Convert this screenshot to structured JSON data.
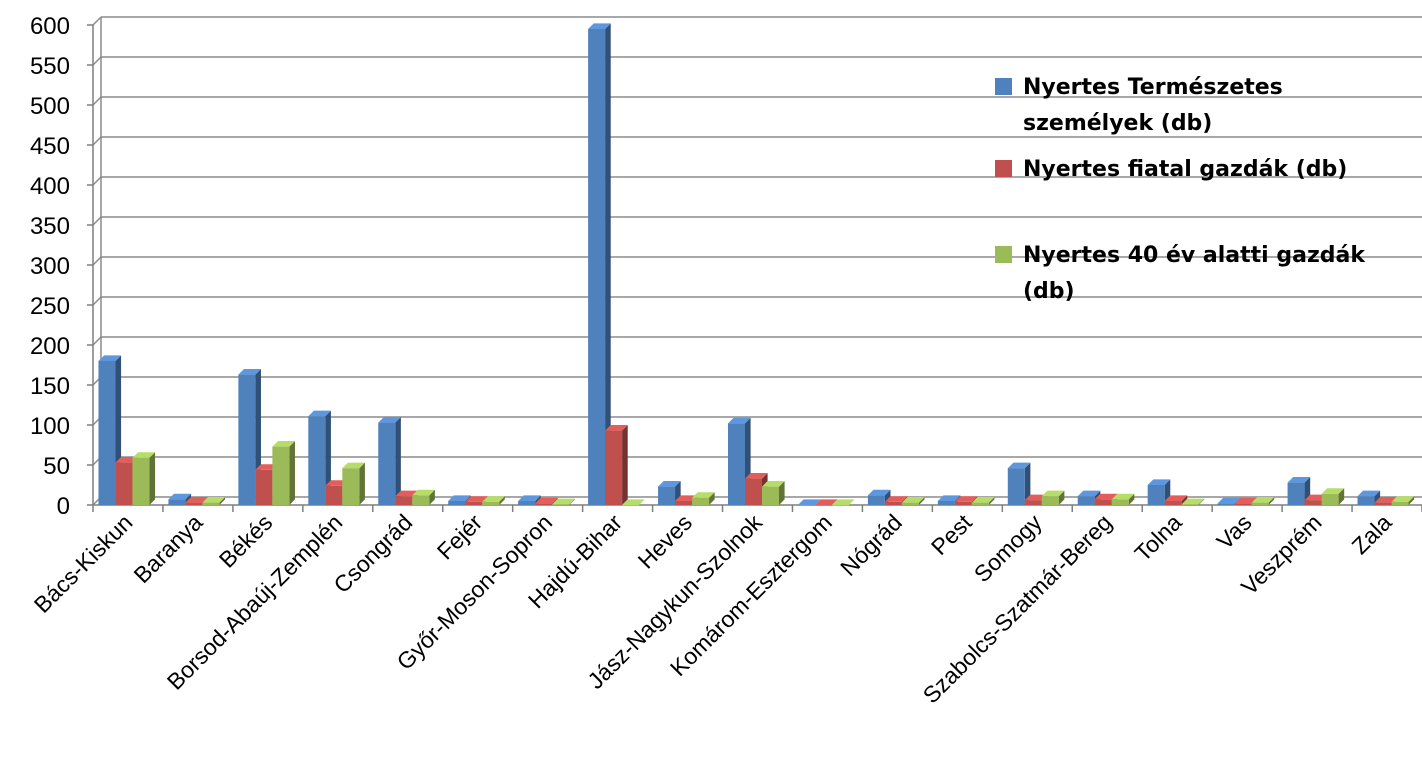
{
  "chart_data": {
    "type": "bar",
    "title": "",
    "xlabel": "",
    "ylabel": "",
    "ylim": [
      0,
      600
    ],
    "yticks": [
      0,
      50,
      100,
      150,
      200,
      250,
      300,
      350,
      400,
      450,
      500,
      550,
      600
    ],
    "grid": true,
    "legend_position": "right",
    "categories": [
      "Bács-Kiskun",
      "Baranya",
      "Békés",
      "Borsod-Abaúj-Zemplén",
      "Csongrád",
      "Fejér",
      "Győr-Moson-Sopron",
      "Hajdú-Bihar",
      "Heves",
      "Jász-Nagykun-Szolnok",
      "Komárom-Esztergom",
      "Nógrád",
      "Pest",
      "Somogy",
      "Szabolcs-Szatmár-Bereg",
      "Tolna",
      "Vas",
      "Veszprém",
      "Zala"
    ],
    "series": [
      {
        "name": "Nyertes Természetes személyek (db)",
        "color": "#4F81BD",
        "values": [
          180,
          7,
          163,
          111,
          103,
          5,
          5,
          595,
          23,
          102,
          0,
          12,
          5,
          46,
          11,
          25,
          2,
          28,
          11
        ]
      },
      {
        "name": "Nyertes fiatal gazdák (db)",
        "color": "#C0504D",
        "values": [
          53,
          3,
          44,
          24,
          11,
          4,
          2,
          93,
          5,
          33,
          0,
          4,
          4,
          6,
          7,
          5,
          2,
          6,
          3
        ]
      },
      {
        "name": "Nyertes 40 év alatti gazdák (db)",
        "color": "#9BBB59",
        "values": [
          59,
          3,
          73,
          46,
          12,
          4,
          1,
          0,
          9,
          23,
          0,
          3,
          3,
          11,
          7,
          1,
          3,
          14,
          4
        ]
      }
    ]
  },
  "legend": {
    "items": [
      {
        "label": "Nyertes Természetes személyek (db)",
        "color": "#4F81BD"
      },
      {
        "label": "Nyertes fiatal gazdák (db)",
        "color": "#C0504D"
      },
      {
        "label": "Nyertes 40 év alatti gazdák (db)",
        "color": "#9BBB59"
      }
    ]
  }
}
